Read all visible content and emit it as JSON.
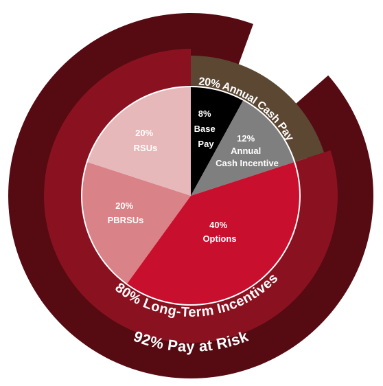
{
  "chart_data": {
    "type": "pie",
    "inner": {
      "slices": [
        {
          "label_lines": [
            "8%",
            "Base",
            "Pay"
          ],
          "value": 8,
          "color": "#000000"
        },
        {
          "label_lines": [
            "12%",
            "Annual",
            "Cash Incentive"
          ],
          "value": 12,
          "color": "#7f7f7f"
        },
        {
          "label_lines": [
            "40%",
            "Options"
          ],
          "value": 40,
          "color": "#c8102e"
        },
        {
          "label_lines": [
            "20%",
            "PBRSUs"
          ],
          "value": 20,
          "color": "#d98287"
        },
        {
          "label_lines": [
            "20%",
            "RSUs"
          ],
          "value": 20,
          "color": "#e6b8b9"
        }
      ]
    },
    "middle_ring": {
      "segments": [
        {
          "label": "20% Annual Cash Pay",
          "value": 20,
          "color": "#5c4733"
        },
        {
          "label": "80% Long-Term Incentives",
          "value": 80,
          "color": "#8a1220"
        }
      ]
    },
    "outer_ring": {
      "segments": [
        {
          "label": "92% Pay at Risk",
          "value": 92,
          "color": "#560a12"
        }
      ]
    }
  }
}
